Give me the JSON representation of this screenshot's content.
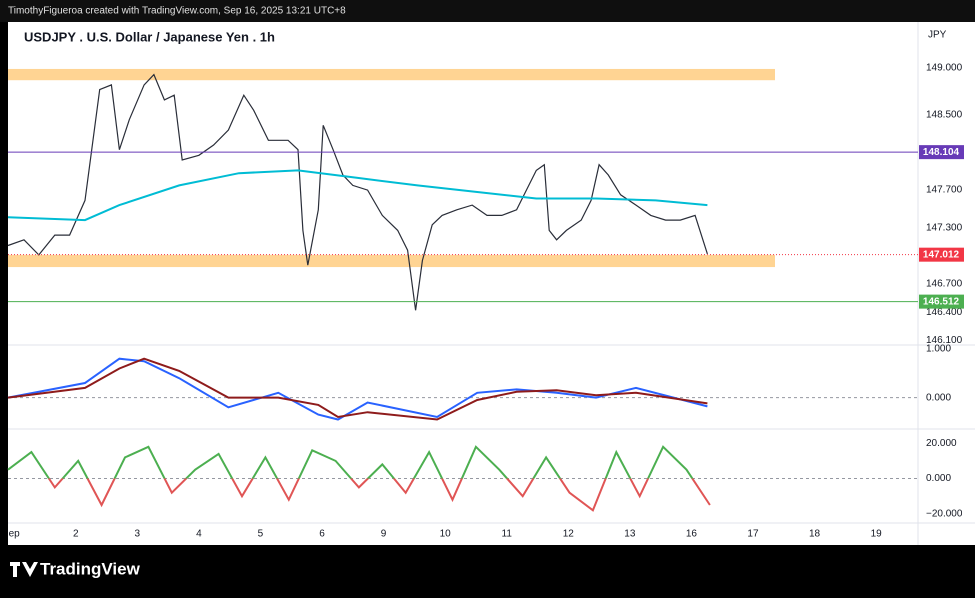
{
  "header": {
    "text": "TimothyFigueroa created with TradingView.com, Sep 16, 2025 13:21 UTC+8"
  },
  "footer": {
    "brand": "TradingView"
  },
  "chart_data": [
    {
      "type": "line",
      "title": "USDJPY . U.S. Dollar / Japanese Yen . 1h",
      "currency": "JPY",
      "xlim": [
        -0.1,
        14.68
      ],
      "xticks": [
        {
          "value": 0,
          "label": "ep"
        },
        {
          "value": 1,
          "label": "2"
        },
        {
          "value": 2,
          "label": "3"
        },
        {
          "value": 3,
          "label": "4"
        },
        {
          "value": 4,
          "label": "5"
        },
        {
          "value": 5,
          "label": "6"
        },
        {
          "value": 6,
          "label": "9"
        },
        {
          "value": 7,
          "label": "10"
        },
        {
          "value": 8,
          "label": "11"
        },
        {
          "value": 9,
          "label": "12"
        },
        {
          "value": 10,
          "label": "13"
        },
        {
          "value": 11,
          "label": "16"
        },
        {
          "value": 12,
          "label": "17"
        },
        {
          "value": 13,
          "label": "18"
        },
        {
          "value": 14,
          "label": "19"
        }
      ],
      "ylim": [
        146.05,
        149.49
      ],
      "yticks": [
        {
          "value": 149,
          "label": "149.000"
        },
        {
          "value": 148.5,
          "label": "148.500"
        },
        {
          "value": 147.7,
          "label": "147.700"
        },
        {
          "value": 147.3,
          "label": "147.300"
        },
        {
          "value": 146.7,
          "label": "146.700"
        },
        {
          "value": 146.4,
          "label": "146.400"
        },
        {
          "value": 146.1,
          "label": "146.100"
        }
      ],
      "levels": [
        {
          "value": 148.104,
          "color": "#673ab7"
        },
        {
          "value": 147.012,
          "color": "#f23645"
        },
        {
          "value": 146.512,
          "color": "#4caf50"
        }
      ],
      "zones": [
        {
          "range": [
            148.87,
            148.99
          ],
          "color": "#ffcc80"
        },
        {
          "range": [
            146.88,
            147.01
          ],
          "color": "#ffcc80"
        }
      ],
      "series": [
        {
          "color": "#2a2e39",
          "x": [
            -0.1,
            0.16,
            0.4,
            0.66,
            0.9,
            1.15,
            1.39,
            1.58,
            1.71,
            1.87,
            2.11,
            2.27,
            2.44,
            2.6,
            2.73,
            3.0,
            3.24,
            3.48,
            3.73,
            3.89,
            4.13,
            4.45,
            4.61,
            4.69,
            4.77,
            4.94,
            5.02,
            5.18,
            5.34,
            5.5,
            5.74,
            5.98,
            6.23,
            6.39,
            6.52,
            6.63,
            6.79,
            6.95,
            7.19,
            7.44,
            7.68,
            7.92,
            8.16,
            8.32,
            8.48,
            8.61,
            8.69,
            8.81,
            8.97,
            9.21,
            9.37,
            9.5,
            9.65,
            9.85,
            10.1,
            10.34,
            10.58,
            10.82,
            11.06,
            11.26
          ],
          "values": [
            147.11,
            147.17,
            147.01,
            147.22,
            147.22,
            147.59,
            148.77,
            148.82,
            148.13,
            148.45,
            148.82,
            148.93,
            148.66,
            148.71,
            148.02,
            148.07,
            148.18,
            148.34,
            148.71,
            148.55,
            148.23,
            148.23,
            148.13,
            147.27,
            146.9,
            147.49,
            148.39,
            148.13,
            147.86,
            147.75,
            147.7,
            147.43,
            147.27,
            147.06,
            146.42,
            146.95,
            147.33,
            147.43,
            147.49,
            147.54,
            147.43,
            147.43,
            147.49,
            147.7,
            147.91,
            147.97,
            147.27,
            147.17,
            147.27,
            147.38,
            147.59,
            147.97,
            147.86,
            147.65,
            147.54,
            147.43,
            147.38,
            147.38,
            147.43,
            147.02
          ]
        },
        {
          "color": "#00bcd4",
          "x": [
            -0.1,
            1.15,
            1.71,
            2.68,
            3.65,
            4.61,
            5.58,
            6.55,
            7.52,
            8.48,
            9.45,
            10.42,
            11.26
          ],
          "values": [
            147.41,
            147.38,
            147.54,
            147.75,
            147.88,
            147.91,
            147.83,
            147.75,
            147.68,
            147.61,
            147.61,
            147.59,
            147.54
          ]
        }
      ]
    },
    {
      "type": "line",
      "ylim": [
        -0.646,
        1.083
      ],
      "yticks": [
        {
          "value": 1,
          "label": "1.000"
        },
        {
          "value": 0,
          "label": "0.000"
        }
      ],
      "series": [
        {
          "color": "#2962ff",
          "x": [
            -0.1,
            1.15,
            1.71,
            2.11,
            2.68,
            3.48,
            4.29,
            4.94,
            5.26,
            5.74,
            6.87,
            7.52,
            8.16,
            8.81,
            9.45,
            10.1,
            11.26
          ],
          "values": [
            0,
            0.3,
            0.8,
            0.75,
            0.4,
            -0.2,
            0.1,
            -0.35,
            -0.45,
            -0.1,
            -0.4,
            0.1,
            0.17,
            0.1,
            0,
            0.2,
            -0.18
          ]
        },
        {
          "color": "#8e1b1b",
          "x": [
            -0.1,
            1.15,
            1.71,
            2.11,
            2.68,
            3.48,
            4.29,
            4.94,
            5.26,
            5.74,
            6.87,
            7.52,
            8.16,
            8.81,
            9.45,
            10.1,
            11.26
          ],
          "values": [
            0,
            0.2,
            0.6,
            0.8,
            0.55,
            0,
            0,
            -0.15,
            -0.4,
            -0.3,
            -0.45,
            -0.05,
            0.12,
            0.15,
            0.05,
            0.1,
            -0.12
          ]
        }
      ]
    },
    {
      "type": "line",
      "ylim": [
        -25.2,
        28.1
      ],
      "yticks": [
        {
          "value": 20,
          "label": "20.000"
        },
        {
          "value": 0,
          "label": "0.000"
        },
        {
          "value": -20,
          "label": "−20.000"
        }
      ],
      "series": [
        {
          "color": "#4caf50",
          "x": [
            -0.1,
            0.28,
            0.66,
            1.04,
            1.42,
            1.8,
            2.18,
            2.56,
            2.94,
            3.32,
            3.7,
            4.08,
            4.46,
            4.84,
            5.22,
            5.6,
            5.98,
            6.36,
            6.74,
            7.12,
            7.5,
            7.88,
            8.26,
            8.64,
            9.02,
            9.4,
            9.78,
            10.16,
            10.54,
            10.92,
            11.3
          ],
          "values": [
            5,
            15,
            -5,
            10,
            -15,
            12,
            18,
            -8,
            5,
            14,
            -10,
            12,
            -12,
            16,
            10,
            -5,
            8,
            -8,
            15,
            -12,
            18,
            5,
            -10,
            12,
            -8,
            -18,
            15,
            -10,
            18,
            5,
            -15
          ]
        }
      ]
    }
  ]
}
